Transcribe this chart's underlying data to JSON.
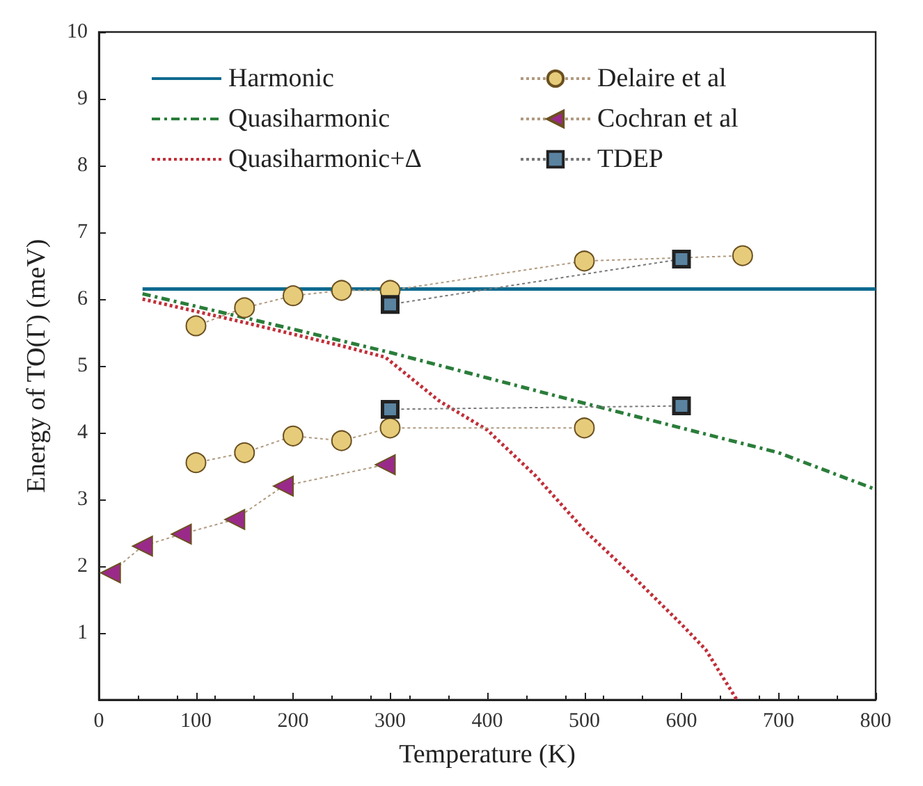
{
  "chart_data": {
    "type": "line",
    "xlabel": "Temperature (K)",
    "ylabel": "Energy of TO(Γ) (meV)",
    "xlim": [
      0,
      800
    ],
    "xticks": [
      0,
      100,
      200,
      300,
      400,
      500,
      600,
      700,
      800
    ],
    "ylim": [
      0,
      10
    ],
    "yticks": [
      {
        "value": 0,
        "label": null
      },
      1,
      2,
      3,
      4,
      5,
      6,
      7,
      8,
      9,
      10
    ],
    "grid": false,
    "legend": "top left",
    "series": [
      {
        "name": "Harmonic",
        "color": "#0f6a8f",
        "line_style": "solid",
        "marker": "none",
        "x": [
          45,
          800
        ],
        "values": [
          6.15,
          6.15
        ]
      },
      {
        "name": "Quasiharmonic",
        "color": "#2a7d3a",
        "line_style": "dashed",
        "marker": "none",
        "x": [
          45,
          200,
          300,
          400,
          500,
          600,
          700,
          800
        ],
        "values": [
          6.08,
          5.55,
          5.2,
          4.82,
          4.44,
          4.07,
          3.7,
          3.15
        ]
      },
      {
        "name": "Quasiharmonic+Δ",
        "color": "#c0303a",
        "line_style": "dotted",
        "marker": "none",
        "x": [
          45,
          150,
          250,
          295,
          350,
          400,
          450,
          500,
          550,
          600,
          625,
          657
        ],
        "values": [
          6.0,
          5.65,
          5.3,
          5.13,
          4.48,
          4.04,
          3.35,
          2.54,
          1.85,
          1.13,
          0.75,
          0
        ]
      },
      {
        "name": "Delaire et al",
        "color": "#e6cc7a",
        "line_style": "dotted",
        "marker": "circle",
        "x": [
          100,
          150,
          200,
          250,
          300,
          500,
          663
        ],
        "values": [
          5.6,
          5.87,
          6.05,
          6.13,
          6.13,
          6.57,
          6.65
        ]
      },
      {
        "color": "#e6cc7a",
        "line_style": "dotted",
        "marker": "circle",
        "x": [
          100,
          150,
          200,
          250,
          300,
          500
        ],
        "values": [
          3.55,
          3.7,
          3.95,
          3.88,
          4.07,
          4.07
        ]
      },
      {
        "name": "Cochran et al",
        "color": "#9a2a8a",
        "line_style": "dotted",
        "marker": "triangle",
        "x": [
          12,
          45,
          85,
          140,
          190,
          295
        ],
        "values": [
          1.9,
          2.3,
          2.48,
          2.7,
          3.2,
          3.52
        ]
      },
      {
        "name": "TDEP",
        "color": "#5a83a0",
        "line_style": "dotted",
        "marker": "square",
        "x": [
          300,
          600
        ],
        "values": [
          5.92,
          6.6
        ]
      },
      {
        "color": "#5a83a0",
        "line_style": "dotted",
        "marker": "square",
        "x": [
          300,
          600
        ],
        "values": [
          4.35,
          4.4
        ]
      }
    ]
  }
}
